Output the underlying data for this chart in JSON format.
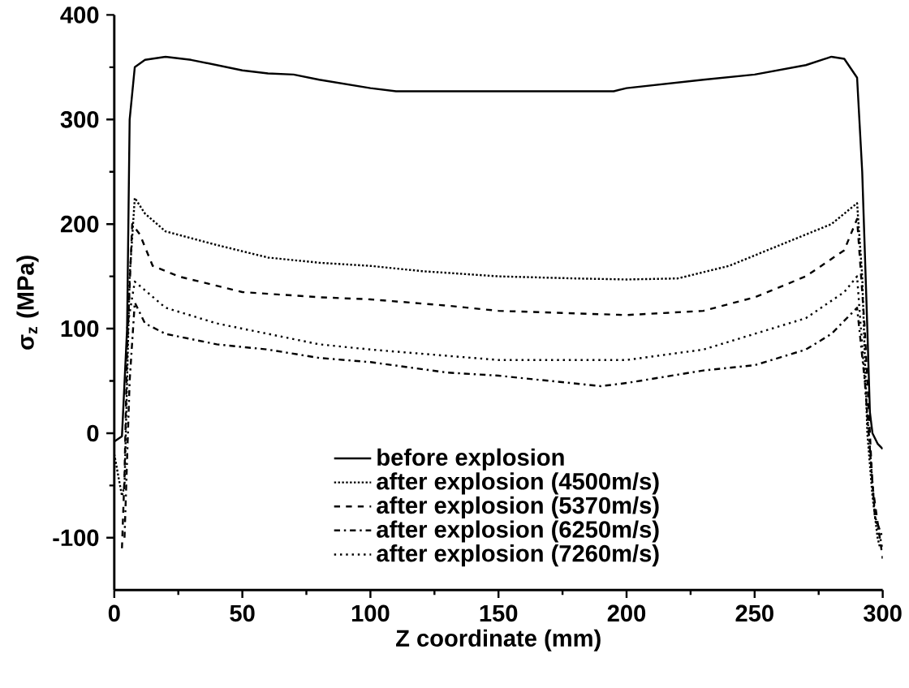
{
  "chart_data": {
    "type": "line",
    "xlabel": "Z coordinate (mm)",
    "ylabel": "σ$_{z}$ (MPa)",
    "xlim": [
      0,
      300
    ],
    "xticks": [
      0,
      50,
      100,
      150,
      200,
      250,
      300
    ],
    "ylim": [
      -150,
      400
    ],
    "yticks": [
      -100,
      0,
      100,
      200,
      300,
      400
    ],
    "grid": false,
    "legend": "bottom",
    "marker": "none",
    "series": [
      {
        "name": "before explosion",
        "color": "#000000",
        "line_style": "solid",
        "x": [
          0,
          3,
          5,
          6,
          8,
          12,
          20,
          30,
          50,
          60,
          70,
          80,
          100,
          110,
          150,
          195,
          200,
          230,
          250,
          270,
          280,
          285,
          290,
          292,
          294,
          295,
          296,
          298,
          300
        ],
        "values": [
          -8,
          -3,
          100,
          300,
          350,
          357,
          360,
          357,
          347,
          344,
          343,
          338,
          330,
          327,
          327,
          327,
          330,
          338,
          343,
          352,
          360,
          358,
          340,
          250,
          100,
          20,
          0,
          -10,
          -15
        ]
      },
      {
        "name": "after explosion (4500m/s)",
        "color": "#000000",
        "line_style": "dotted",
        "x": [
          0,
          3,
          4,
          5,
          6,
          8,
          12,
          20,
          40,
          60,
          80,
          100,
          120,
          150,
          180,
          200,
          220,
          240,
          260,
          280,
          290,
          292,
          294,
          296,
          298,
          299
        ],
        "values": [
          -20,
          -60,
          -50,
          50,
          150,
          225,
          210,
          193,
          180,
          168,
          163,
          160,
          155,
          150,
          148,
          147,
          148,
          160,
          180,
          200,
          220,
          150,
          0,
          -60,
          -100,
          -110
        ]
      },
      {
        "name": "after explosion (5370m/s)",
        "color": "#000000",
        "line_style": "dashed",
        "x": [
          3,
          4,
          5,
          7,
          10,
          15,
          25,
          50,
          80,
          100,
          130,
          150,
          200,
          230,
          250,
          270,
          285,
          290,
          293,
          296,
          300
        ],
        "values": [
          -110,
          -40,
          80,
          200,
          190,
          160,
          150,
          135,
          130,
          128,
          122,
          117,
          113,
          117,
          130,
          150,
          175,
          205,
          100,
          -50,
          -120
        ]
      },
      {
        "name": "after explosion (6250m/s)",
        "color": "#000000",
        "line_style": "dashdot",
        "x": [
          4,
          6,
          8,
          12,
          20,
          40,
          60,
          80,
          100,
          130,
          150,
          190,
          200,
          230,
          250,
          270,
          280,
          290,
          293,
          297,
          300
        ],
        "values": [
          -100,
          50,
          125,
          105,
          95,
          85,
          80,
          72,
          68,
          58,
          55,
          45,
          48,
          60,
          65,
          80,
          95,
          120,
          50,
          -80,
          -100
        ]
      },
      {
        "name": "after explosion (7260m/s)",
        "color": "#000000",
        "line_style": "loosely dotted",
        "x": [
          5,
          8,
          20,
          40,
          60,
          80,
          100,
          150,
          200,
          230,
          250,
          270,
          285,
          290,
          293,
          297,
          300
        ],
        "values": [
          100,
          145,
          120,
          105,
          95,
          85,
          80,
          70,
          70,
          80,
          95,
          110,
          135,
          150,
          50,
          -80,
          -110
        ]
      }
    ]
  }
}
